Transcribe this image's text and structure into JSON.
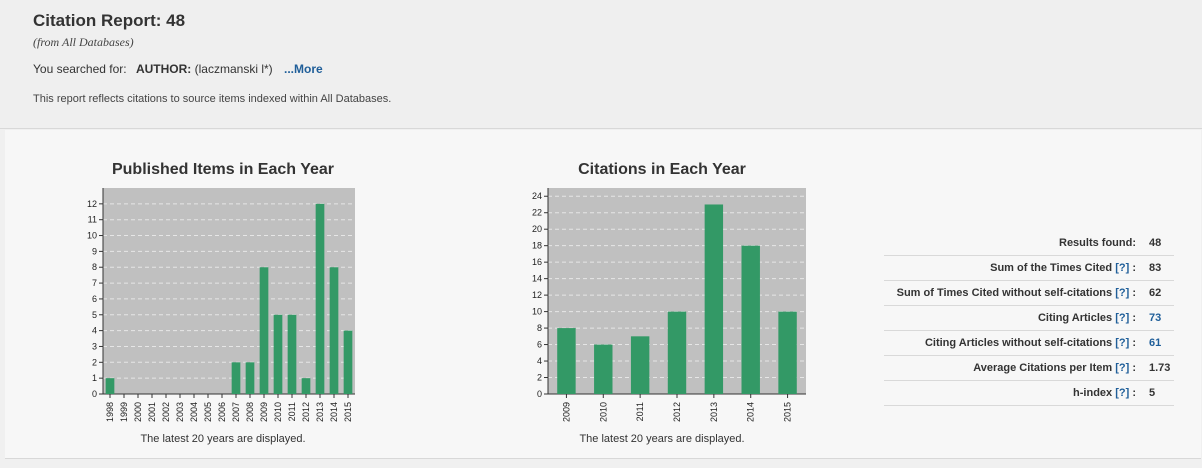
{
  "header": {
    "title": "Citation Report: 48",
    "subtitle": "(from All Databases)",
    "searched_prefix": "You searched for:",
    "searched_field": "AUTHOR:",
    "searched_value": "(laczmanski l*)",
    "more_label": "...More",
    "note": "This report reflects citations to source items indexed within All Databases."
  },
  "charts": {
    "published": {
      "title": "Published Items in Each Year",
      "footnote": "The latest 20 years are displayed."
    },
    "citations": {
      "title": "Citations in Each Year",
      "footnote": "The latest 20 years are displayed."
    }
  },
  "stats": [
    {
      "label": "Results found:",
      "help": "",
      "value": "48",
      "value_link": false
    },
    {
      "label": "Sum of the Times Cited",
      "help": "[?]",
      "value": "83",
      "value_link": false
    },
    {
      "label": "Sum of Times Cited without self-citations",
      "help": "[?]",
      "value": "62",
      "value_link": false
    },
    {
      "label": "Citing Articles",
      "help": "[?]",
      "value": "73",
      "value_link": true
    },
    {
      "label": "Citing Articles without self-citations",
      "help": "[?]",
      "value": "61",
      "value_link": true
    },
    {
      "label": "Average Citations per Item",
      "help": "[?]",
      "value": "1.73",
      "value_link": false
    },
    {
      "label": "h-index",
      "help": "[?]",
      "value": "5",
      "value_link": false
    }
  ],
  "colors": {
    "bar": "#339966",
    "plot_bg": "#c0c0c0",
    "link": "#1f5e99"
  },
  "chart_data": [
    {
      "type": "bar",
      "title": "Published Items in Each Year",
      "categories": [
        "1998",
        "1999",
        "2000",
        "2001",
        "2002",
        "2003",
        "2004",
        "2005",
        "2006",
        "2007",
        "2008",
        "2009",
        "2010",
        "2011",
        "2012",
        "2013",
        "2014",
        "2015"
      ],
      "values": [
        1,
        0,
        0,
        0,
        0,
        0,
        0,
        0,
        0,
        2,
        2,
        8,
        5,
        5,
        1,
        12,
        8,
        4
      ],
      "ylim": [
        0,
        13
      ],
      "yticks": [
        0,
        1,
        2,
        3,
        4,
        5,
        6,
        7,
        8,
        9,
        10,
        11,
        12
      ],
      "grid": true
    },
    {
      "type": "bar",
      "title": "Citations in Each Year",
      "categories": [
        "2009",
        "2010",
        "2011",
        "2012",
        "2013",
        "2014",
        "2015"
      ],
      "values": [
        8,
        6,
        7,
        10,
        23,
        18,
        10
      ],
      "ylim": [
        0,
        25
      ],
      "yticks": [
        0,
        2,
        4,
        6,
        8,
        10,
        12,
        14,
        16,
        18,
        20,
        22,
        24
      ],
      "grid": true
    }
  ]
}
